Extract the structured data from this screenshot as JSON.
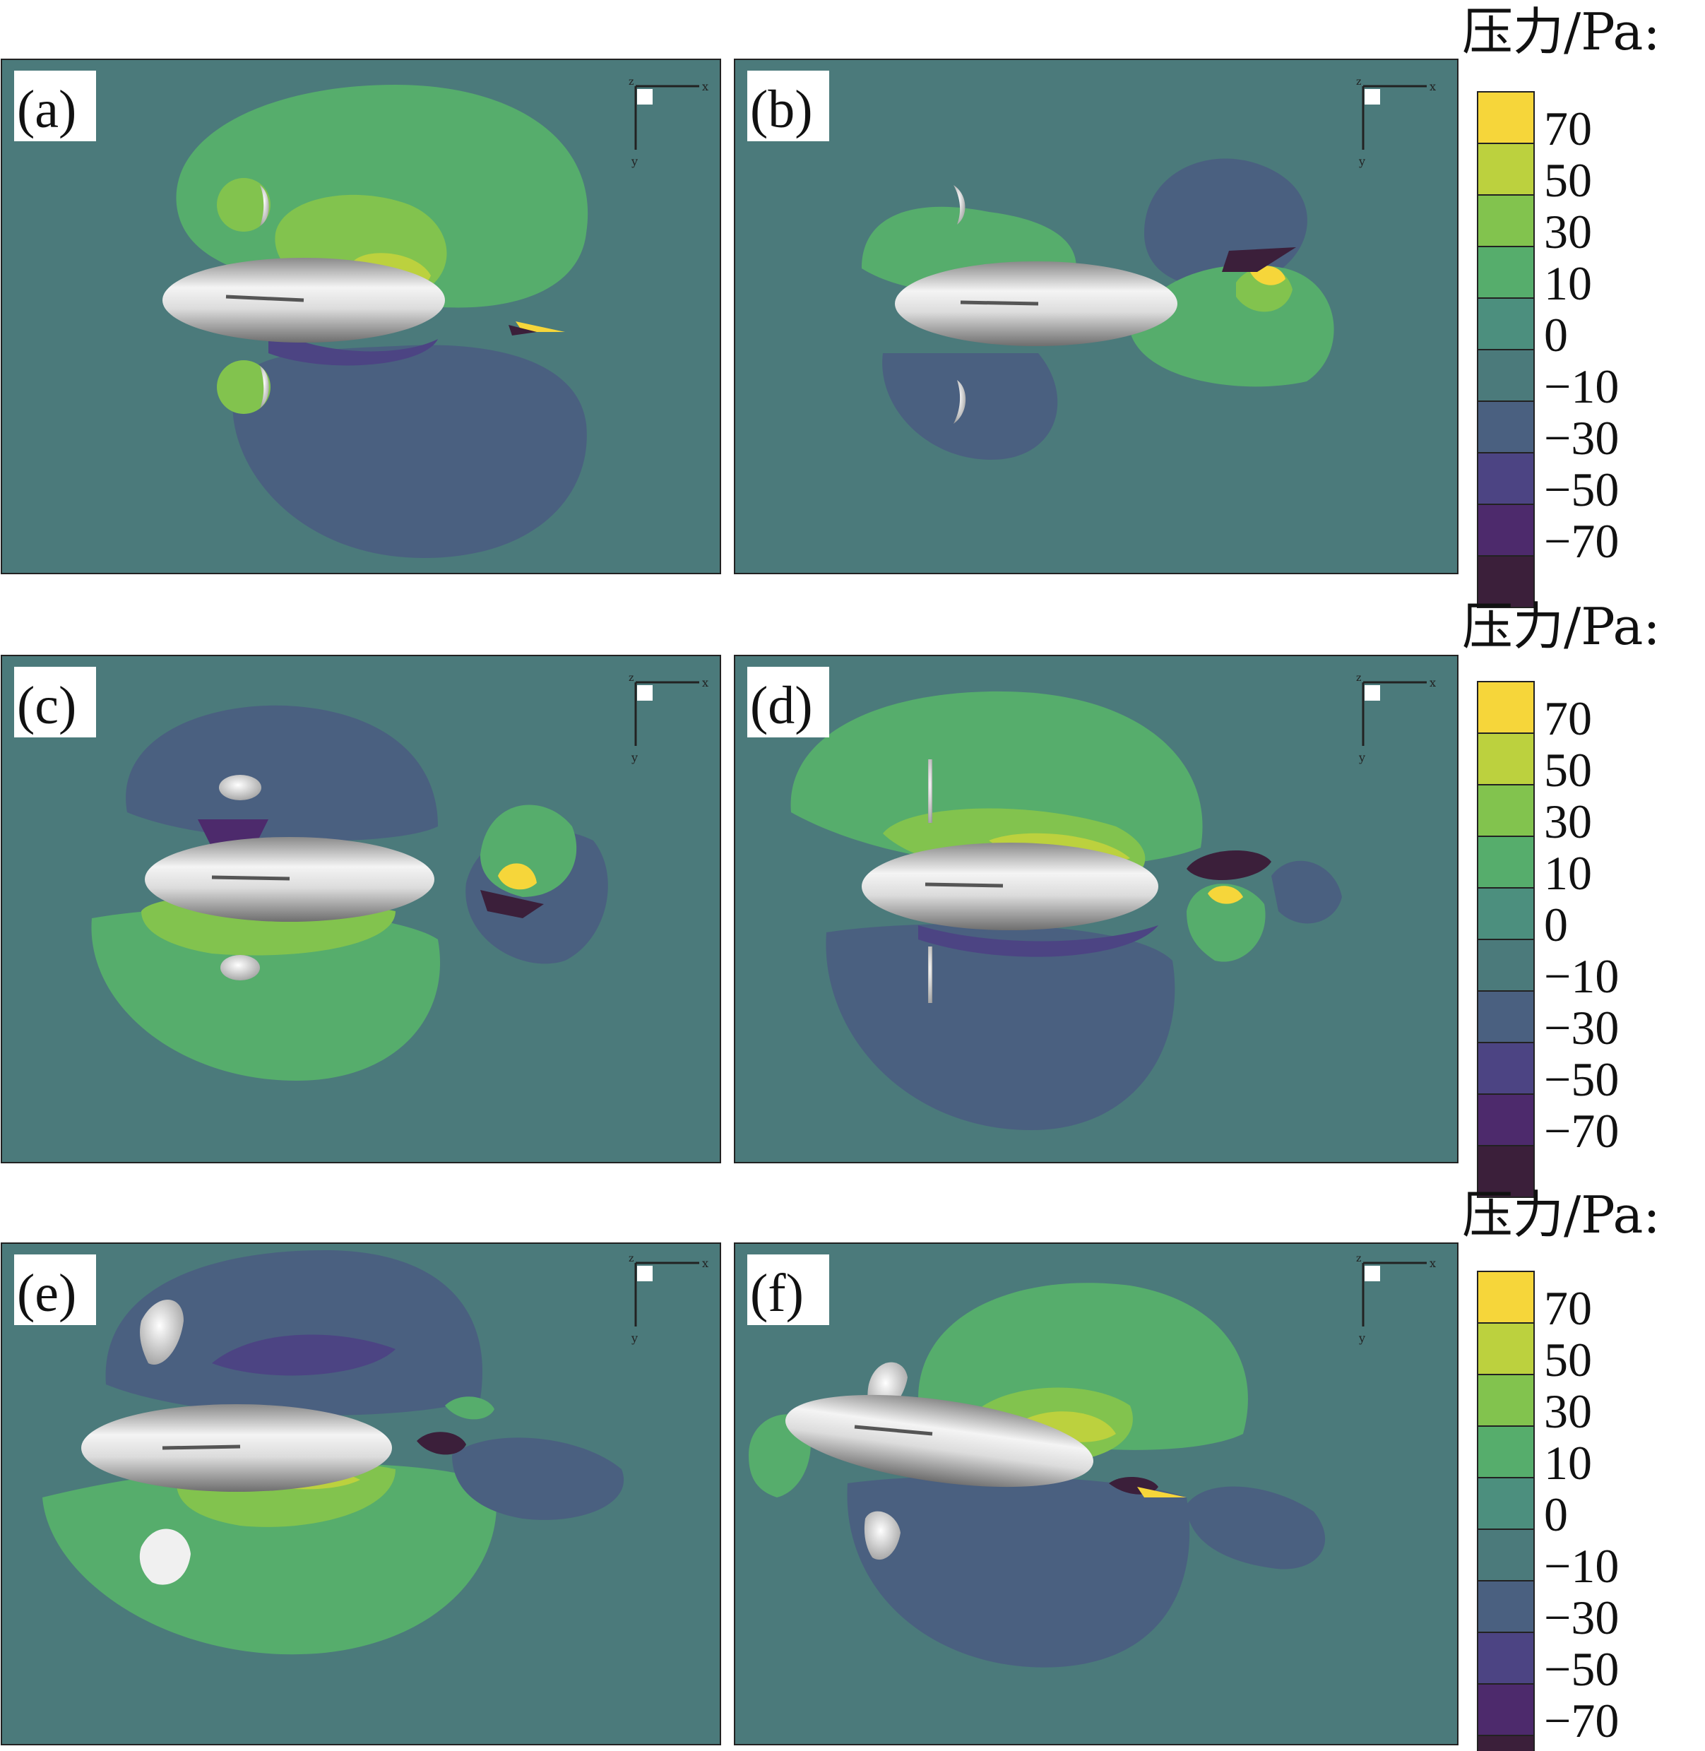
{
  "figure": {
    "legend_title": "压力/Pa:",
    "panels": [
      {
        "id": "a",
        "label": "(a)"
      },
      {
        "id": "b",
        "label": "(b)"
      },
      {
        "id": "c",
        "label": "(c)"
      },
      {
        "id": "d",
        "label": "(d)"
      },
      {
        "id": "e",
        "label": "(e)"
      },
      {
        "id": "f",
        "label": "(f)"
      }
    ],
    "axis_letters": {
      "x": "x",
      "y": "y",
      "z": "z"
    }
  },
  "chart_data": {
    "type": "heatmap",
    "colorbar": {
      "title": "压力/Pa:",
      "tick_labels": [
        "70",
        "50",
        "30",
        "10",
        "0",
        "−10",
        "−30",
        "−50",
        "−70"
      ],
      "levels": [
        {
          "color": "#f6d63a"
        },
        {
          "color": "#bcd13e"
        },
        {
          "color": "#82c34e"
        },
        {
          "color": "#56ad6c"
        },
        {
          "color": "#4c8f7e"
        },
        {
          "color": "#4b7a7b"
        },
        {
          "color": "#4a6080"
        },
        {
          "color": "#4c4483"
        },
        {
          "color": "#4d2a6c"
        },
        {
          "color": "#3b1f3a"
        }
      ]
    },
    "colors": {
      "background_field": "#4b7a7b",
      "body_light": "#f4f4f4",
      "body_dark": "#8a8a8a"
    }
  }
}
